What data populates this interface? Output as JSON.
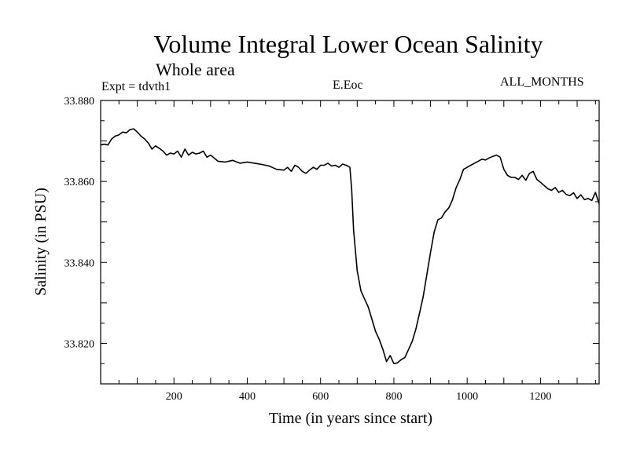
{
  "chart_data": {
    "type": "line",
    "title": "Volume Integral Lower Ocean Salinity",
    "subtitle": "Whole area",
    "annotations": {
      "experiment": "Expt = tdvth1",
      "variable": "E.Eoc",
      "months": "ALL_MONTHS"
    },
    "xlabel": "Time (in years since start)",
    "ylabel": "Salinity (in PSU)",
    "xlim": [
      0,
      1360
    ],
    "ylim": [
      33.81,
      33.88
    ],
    "xticks": [
      "200",
      "400",
      "600",
      "800",
      "1000",
      "1200"
    ],
    "yticks": [
      "33.820",
      "33.840",
      "33.860",
      "33.880"
    ],
    "series": [
      {
        "name": "Salinity",
        "x": [
          0,
          10,
          20,
          30,
          40,
          50,
          60,
          70,
          80,
          90,
          100,
          110,
          120,
          130,
          140,
          150,
          160,
          170,
          180,
          190,
          200,
          210,
          220,
          230,
          240,
          250,
          260,
          270,
          280,
          290,
          300,
          320,
          340,
          360,
          380,
          400,
          420,
          440,
          460,
          480,
          500,
          510,
          520,
          530,
          540,
          550,
          560,
          570,
          580,
          590,
          600,
          610,
          620,
          630,
          640,
          650,
          660,
          670,
          680,
          685,
          690,
          695,
          700,
          710,
          720,
          730,
          740,
          750,
          760,
          770,
          780,
          790,
          800,
          810,
          820,
          830,
          840,
          850,
          860,
          870,
          880,
          890,
          900,
          910,
          920,
          930,
          940,
          950,
          960,
          970,
          980,
          990,
          1000,
          1010,
          1020,
          1030,
          1040,
          1050,
          1060,
          1070,
          1080,
          1090,
          1100,
          1110,
          1120,
          1130,
          1140,
          1150,
          1160,
          1170,
          1180,
          1190,
          1200,
          1210,
          1220,
          1230,
          1240,
          1250,
          1260,
          1270,
          1280,
          1290,
          1300,
          1310,
          1320,
          1330,
          1340,
          1350,
          1360
        ],
        "values": [
          33.869,
          33.8692,
          33.869,
          33.8705,
          33.8712,
          33.8715,
          33.8722,
          33.872,
          33.8728,
          33.873,
          33.8722,
          33.8712,
          33.8705,
          33.8695,
          33.868,
          33.8688,
          33.8682,
          33.8675,
          33.8665,
          33.867,
          33.8668,
          33.8675,
          33.866,
          33.868,
          33.8665,
          33.8672,
          33.8668,
          33.867,
          33.8675,
          33.866,
          33.8665,
          33.865,
          33.8648,
          33.8652,
          33.8645,
          33.8648,
          33.8645,
          33.8642,
          33.8638,
          33.863,
          33.8628,
          33.8635,
          33.8625,
          33.864,
          33.8635,
          33.8625,
          33.862,
          33.8628,
          33.8635,
          33.863,
          33.864,
          33.864,
          33.8645,
          33.8638,
          33.864,
          33.8635,
          33.8643,
          33.864,
          33.8635,
          33.858,
          33.848,
          33.843,
          33.838,
          33.833,
          33.831,
          33.829,
          33.826,
          33.823,
          33.821,
          33.8185,
          33.8155,
          33.817,
          33.815,
          33.8152,
          33.816,
          33.8165,
          33.8185,
          33.8205,
          33.8235,
          33.8275,
          33.8315,
          33.837,
          33.8425,
          33.8475,
          33.8505,
          33.851,
          33.8525,
          33.8535,
          33.8555,
          33.8585,
          33.8605,
          33.863,
          33.8635,
          33.864,
          33.8645,
          33.865,
          33.8655,
          33.8653,
          33.8658,
          33.8662,
          33.8665,
          33.866,
          33.863,
          33.8615,
          33.861,
          33.861,
          33.8605,
          33.8615,
          33.8603,
          33.862,
          33.8625,
          33.8605,
          33.8598,
          33.859,
          33.8582,
          33.8578,
          33.8585,
          33.8573,
          33.8578,
          33.8568,
          33.8565,
          33.8572,
          33.8558,
          33.8567,
          33.8555,
          33.8558,
          33.8553,
          33.8573,
          33.8545
        ]
      }
    ]
  }
}
